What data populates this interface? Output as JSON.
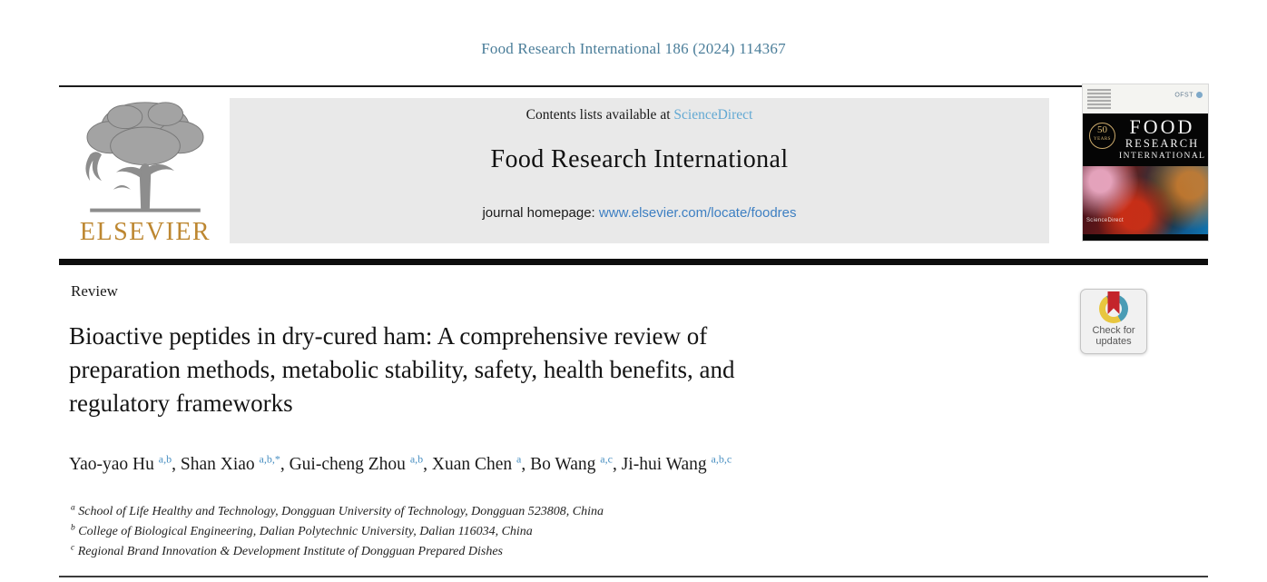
{
  "page": {
    "citation": "Food Research International 186 (2024) 114367"
  },
  "colors": {
    "citation_text": "#4a7d99",
    "banner_background": "#e9e9e9",
    "sciencedirect_link": "#63a9d3",
    "homepage_link": "#3d7fc2",
    "elsevier_wordmark": "#bd8731",
    "author_superscript": "#4a90c2",
    "badge_ring_teal": "#4a9cb5",
    "badge_ring_yellow": "#e8c63f",
    "badge_bookmark_red": "#c4242b"
  },
  "header": {
    "publisher_wordmark": "ELSEVIER",
    "contents_prefix": "Contents lists available at ",
    "sciencedirect_label": "ScienceDirect",
    "journal_title": "Food Research International",
    "homepage_prefix": "journal homepage: ",
    "homepage_url": "www.elsevier.com/locate/foodres"
  },
  "cover": {
    "title_lines": [
      "FOOD",
      "RESEARCH",
      "INTERNATIONAL"
    ],
    "anniversary_number": "50",
    "anniversary_label": "YEARS",
    "society_label": "OFST",
    "brand": "ScienceDirect"
  },
  "article": {
    "section_label": "Review",
    "title_lines": [
      "Bioactive peptides in dry-cured ham: A comprehensive review of",
      "preparation methods, metabolic stability, safety, health benefits, and",
      "regulatory frameworks"
    ],
    "authors": [
      {
        "name": "Yao-yao Hu",
        "sup": "a,b"
      },
      {
        "name": "Shan Xiao",
        "sup": "a,b,*"
      },
      {
        "name": "Gui-cheng Zhou",
        "sup": "a,b"
      },
      {
        "name": "Xuan Chen",
        "sup": "a"
      },
      {
        "name": "Bo Wang",
        "sup": "a,c"
      },
      {
        "name": "Ji-hui Wang",
        "sup": "a,b,c"
      }
    ],
    "affiliations": [
      {
        "sup": "a",
        "text": "School of Life Healthy and Technology, Dongguan University of Technology, Dongguan 523808, China"
      },
      {
        "sup": "b",
        "text": "College of Biological Engineering, Dalian Polytechnic University, Dalian 116034, China"
      },
      {
        "sup": "c",
        "text": "Regional Brand Innovation & Development Institute of Dongguan Prepared Dishes"
      }
    ]
  },
  "badge": {
    "line1": "Check for",
    "line2": "updates"
  }
}
